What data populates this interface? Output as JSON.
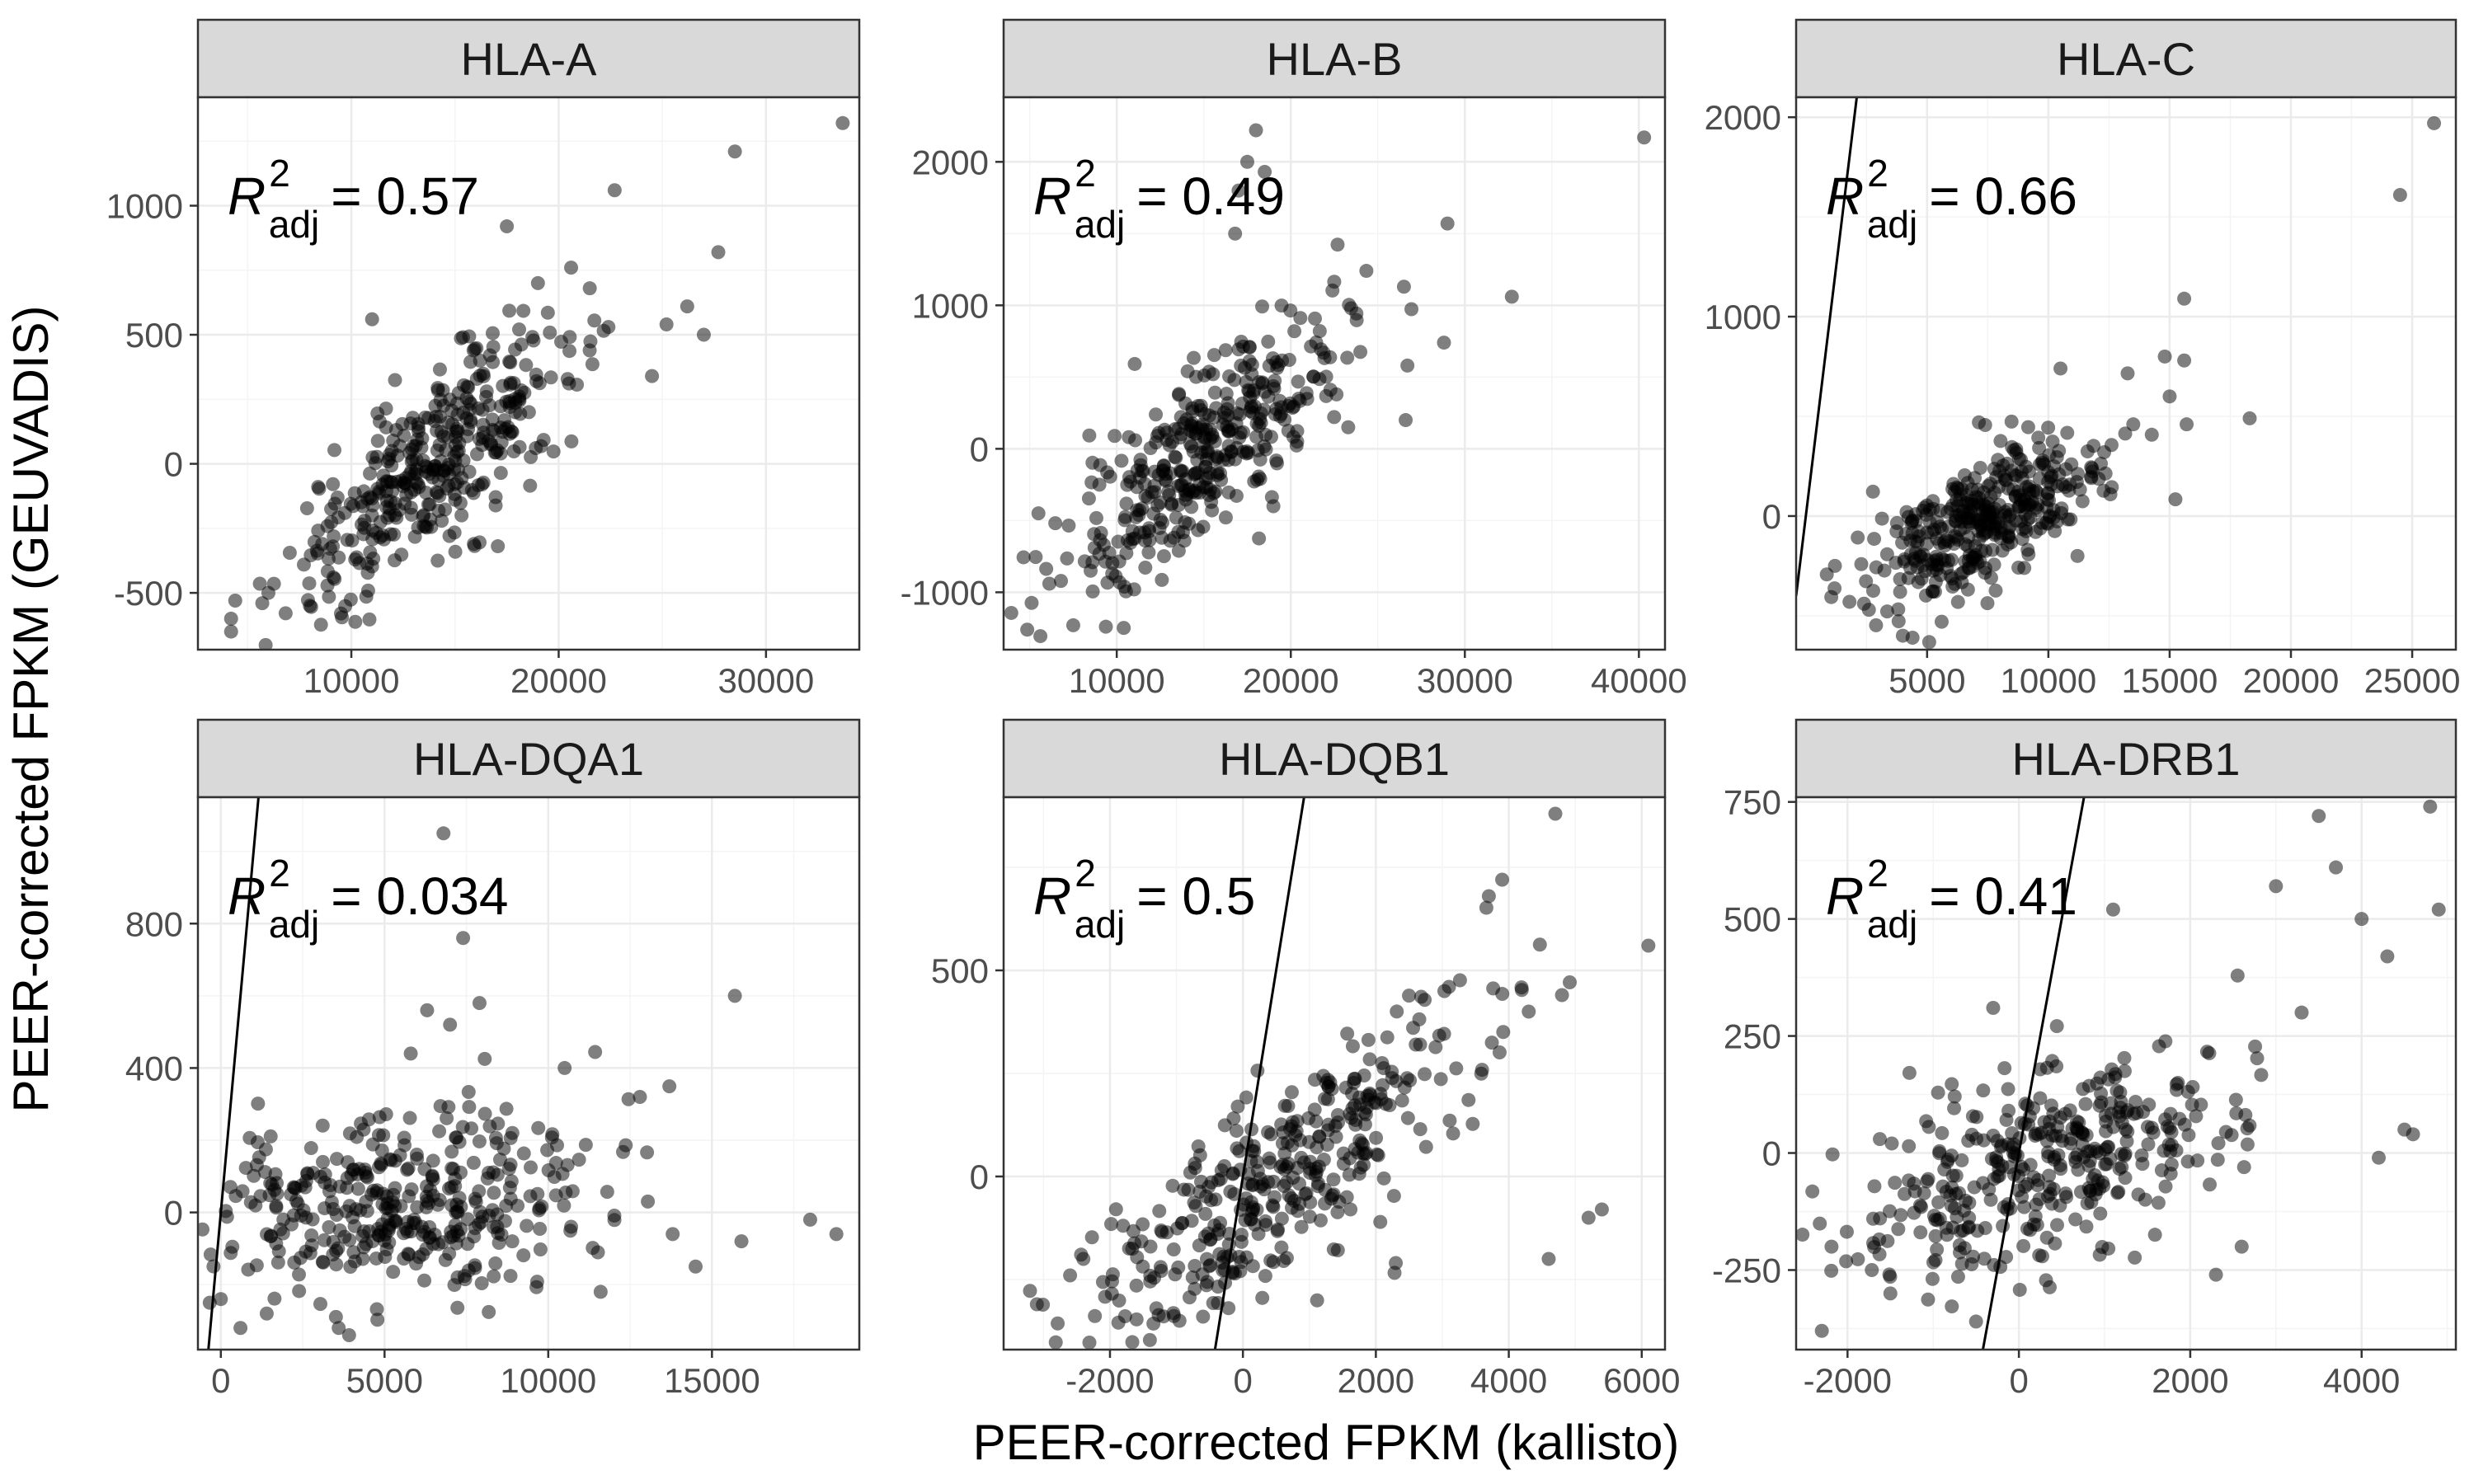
{
  "figure": {
    "xlabel": "PEER-corrected FPKM (kallisto)",
    "ylabel": "PEER-corrected FPKM (GEUVADIS)"
  },
  "colors": {
    "strip_fill": "#d9d9d9",
    "panel_border": "#333333",
    "grid_major": "#ebebeb",
    "grid_minor": "#f4f4f4",
    "point": "#000000",
    "point_opacity": 0.5,
    "identity_line": "#000000"
  },
  "chart_data": [
    {
      "type": "scatter",
      "title": "HLA-A",
      "xlabel": "PEER-corrected FPKM (kallisto)",
      "ylabel": "PEER-corrected FPKM (GEUVADIS)",
      "xlim": [
        2600,
        34500
      ],
      "ylim": [
        -720,
        1420
      ],
      "xticks": [
        10000,
        20000,
        30000
      ],
      "yticks": [
        -500,
        0,
        500,
        1000
      ],
      "r2_label": "0.57",
      "identity_line": true,
      "n_points": 380,
      "center_x": 14000,
      "sd_x": 3500,
      "slope": 0.06,
      "intercept": -840,
      "noise": 160,
      "highlights": [
        [
          4200,
          -600
        ],
        [
          4200,
          -650
        ],
        [
          4400,
          -530
        ],
        [
          6000,
          -500
        ],
        [
          11000,
          560
        ],
        [
          17500,
          920
        ],
        [
          22700,
          1060
        ],
        [
          28500,
          1210
        ],
        [
          33700,
          1320
        ],
        [
          27700,
          820
        ],
        [
          26200,
          610
        ],
        [
          25200,
          540
        ],
        [
          27000,
          500
        ],
        [
          22400,
          530
        ],
        [
          21500,
          680
        ],
        [
          20600,
          760
        ],
        [
          24500,
          340
        ],
        [
          19000,
          700
        ],
        [
          9500,
          -580
        ],
        [
          8000,
          -550
        ]
      ]
    },
    {
      "type": "scatter",
      "title": "HLA-B",
      "xlabel": "PEER-corrected FPKM (kallisto)",
      "ylabel": "PEER-corrected FPKM (GEUVADIS)",
      "xlim": [
        3500,
        41500
      ],
      "ylim": [
        -1400,
        2450
      ],
      "xticks": [
        10000,
        20000,
        30000,
        40000
      ],
      "yticks": [
        -1000,
        0,
        1000,
        2000
      ],
      "r2_label": "0.49",
      "identity_line": true,
      "n_points": 380,
      "center_x": 15000,
      "sd_x": 3800,
      "slope": 0.09,
      "intercept": -1350,
      "noise": 300,
      "highlights": [
        [
          40300,
          2170
        ],
        [
          18000,
          2220
        ],
        [
          17500,
          2000
        ],
        [
          18500,
          1930
        ],
        [
          17000,
          1800
        ],
        [
          29000,
          1570
        ],
        [
          32700,
          1060
        ],
        [
          26500,
          1130
        ],
        [
          28800,
          740
        ],
        [
          26700,
          580
        ],
        [
          26600,
          200
        ],
        [
          23300,
          150
        ],
        [
          5500,
          -450
        ],
        [
          7500,
          -1230
        ],
        [
          11000,
          -980
        ],
        [
          19000,
          -400
        ],
        [
          8500,
          -850
        ],
        [
          16800,
          1500
        ]
      ]
    },
    {
      "type": "scatter",
      "title": "HLA-C",
      "xlabel": "PEER-corrected FPKM (kallisto)",
      "ylabel": "PEER-corrected FPKM (GEUVADIS)",
      "xlim": [
        -400,
        26800
      ],
      "ylim": [
        -670,
        2100
      ],
      "xticks": [
        5000,
        10000,
        15000,
        20000,
        25000
      ],
      "yticks": [
        0,
        1000,
        2000
      ],
      "r2_label": "0.66",
      "identity_line": true,
      "n_points": 380,
      "center_x": 7500,
      "sd_x": 2400,
      "slope": 0.062,
      "intercept": -480,
      "noise": 160,
      "highlights": [
        [
          25900,
          1970
        ],
        [
          24500,
          1610
        ],
        [
          15600,
          1090
        ],
        [
          15600,
          780
        ],
        [
          14800,
          800
        ],
        [
          15700,
          460
        ],
        [
          15000,
          600
        ],
        [
          18300,
          490
        ],
        [
          12300,
          320
        ],
        [
          10500,
          740
        ],
        [
          1800,
          -430
        ],
        [
          2600,
          -470
        ],
        [
          4000,
          -600
        ],
        [
          4400,
          -610
        ],
        [
          5600,
          -530
        ],
        [
          1200,
          -250
        ],
        [
          13500,
          460
        ],
        [
          11200,
          -200
        ]
      ]
    },
    {
      "type": "scatter",
      "title": "HLA-DQA1",
      "xlabel": "PEER-corrected FPKM (kallisto)",
      "ylabel": "PEER-corrected FPKM (GEUVADIS)",
      "xlim": [
        -700,
        19500
      ],
      "ylim": [
        -380,
        1150
      ],
      "xticks": [
        0,
        5000,
        10000,
        15000
      ],
      "yticks": [
        0,
        400,
        800
      ],
      "r2_label": "0.034",
      "identity_line": true,
      "n_points": 380,
      "center_x": 5500,
      "sd_x": 2800,
      "slope": 0.01,
      "intercept": -30,
      "noise": 130,
      "highlights": [
        [
          6800,
          1050
        ],
        [
          7400,
          760
        ],
        [
          7900,
          580
        ],
        [
          15700,
          600
        ],
        [
          15900,
          -80
        ],
        [
          18000,
          -20
        ],
        [
          18800,
          -60
        ],
        [
          14500,
          -150
        ],
        [
          13800,
          -60
        ],
        [
          0,
          -240
        ],
        [
          600,
          -320
        ],
        [
          3600,
          -320
        ],
        [
          11600,
          -220
        ],
        [
          10500,
          400
        ],
        [
          12800,
          320
        ],
        [
          6300,
          560
        ],
        [
          7000,
          520
        ],
        [
          5800,
          440
        ]
      ]
    },
    {
      "type": "scatter",
      "title": "HLA-DQB1",
      "xlabel": "PEER-corrected FPKM (kallisto)",
      "ylabel": "PEER-corrected FPKM (GEUVADIS)",
      "xlim": [
        -3600,
        6350
      ],
      "ylim": [
        -420,
        920
      ],
      "xticks": [
        -2000,
        0,
        2000,
        4000,
        6000
      ],
      "yticks": [
        0,
        500
      ],
      "r2_label": "0.5",
      "identity_line": true,
      "n_points": 380,
      "center_x": 500,
      "sd_x": 1500,
      "slope": 0.1,
      "intercept": -60,
      "noise": 120,
      "highlights": [
        [
          4700,
          880
        ],
        [
          3900,
          720
        ],
        [
          3700,
          680
        ],
        [
          6100,
          560
        ],
        [
          4800,
          440
        ],
        [
          4300,
          400
        ],
        [
          5200,
          -100
        ],
        [
          5400,
          -80
        ],
        [
          4600,
          -200
        ],
        [
          2300,
          -210
        ],
        [
          -3100,
          -310
        ],
        [
          -600,
          -340
        ],
        [
          -2400,
          -200
        ],
        [
          -2600,
          -240
        ],
        [
          3100,
          460
        ],
        [
          2600,
          320
        ]
      ]
    },
    {
      "type": "scatter",
      "title": "HLA-DRB1",
      "xlabel": "PEER-corrected FPKM (kallisto)",
      "ylabel": "PEER-corrected FPKM (GEUVADIS)",
      "xlim": [
        -2600,
        5100
      ],
      "ylim": [
        -420,
        760
      ],
      "xticks": [
        -2000,
        0,
        2000,
        4000
      ],
      "yticks": [
        -250,
        0,
        250,
        500,
        750
      ],
      "r2_label": "0.41",
      "identity_line": true,
      "n_points": 380,
      "center_x": 300,
      "sd_x": 1200,
      "slope": 0.06,
      "intercept": -40,
      "noise": 100,
      "highlights": [
        [
          4800,
          740
        ],
        [
          4900,
          520
        ],
        [
          3500,
          720
        ],
        [
          3700,
          610
        ],
        [
          3000,
          570
        ],
        [
          3300,
          300
        ],
        [
          4000,
          500
        ],
        [
          4300,
          420
        ],
        [
          4500,
          50
        ],
        [
          4600,
          40
        ],
        [
          4200,
          -10
        ],
        [
          -2300,
          -380
        ],
        [
          -500,
          -360
        ],
        [
          2600,
          -200
        ],
        [
          2300,
          -260
        ],
        [
          -1500,
          -300
        ],
        [
          1100,
          520
        ],
        [
          -300,
          310
        ]
      ]
    }
  ]
}
